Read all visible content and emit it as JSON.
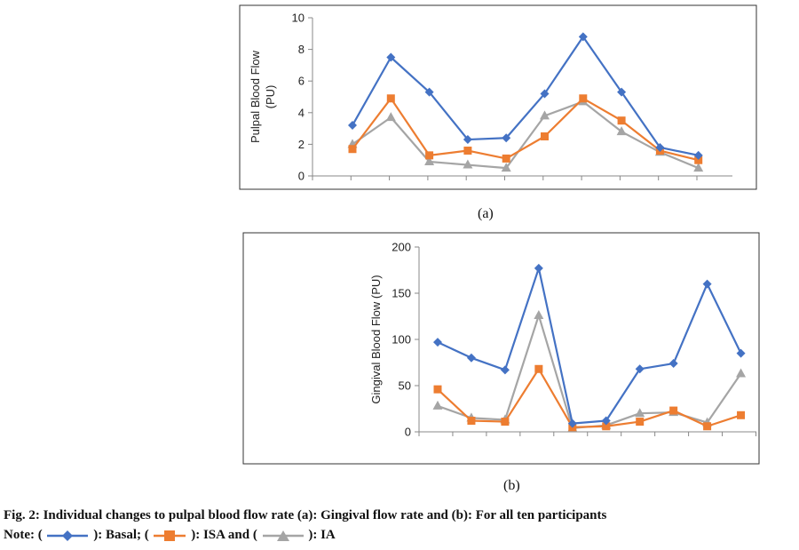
{
  "figure": {
    "caption_line1": "Fig. 2: Individual changes to pulpal blood flow rate (a): Gingival flow rate and (b): For all ten participants",
    "note_prefix": "Note: (",
    "note_basal": "): Basal; (",
    "note_isa": "): ISA and (",
    "note_ia": "): IA",
    "colors": {
      "basal": "#4472C4",
      "isa": "#ED7D31",
      "ia": "#A5A5A5"
    }
  },
  "chart_data": [
    {
      "type": "line",
      "panel_label": "(a)",
      "ylabel_line1": "Pulpal Blood Flow",
      "ylabel_line2": "(PU)",
      "ylim": [
        0,
        10
      ],
      "yticks": [
        0,
        2,
        4,
        6,
        8,
        10
      ],
      "x": [
        1,
        2,
        3,
        4,
        5,
        6,
        7,
        8,
        9,
        10
      ],
      "series": [
        {
          "name": "Basal",
          "marker": "diamond",
          "color": "#4472C4",
          "values": [
            3.2,
            7.5,
            5.3,
            2.3,
            2.4,
            5.2,
            8.8,
            5.3,
            1.8,
            1.3
          ]
        },
        {
          "name": "ISA",
          "marker": "square",
          "color": "#ED7D31",
          "values": [
            1.7,
            4.9,
            1.3,
            1.6,
            1.1,
            2.5,
            4.9,
            3.5,
            1.6,
            1.0
          ]
        },
        {
          "name": "IA",
          "marker": "triangle",
          "color": "#A5A5A5",
          "values": [
            2.0,
            3.7,
            0.9,
            0.7,
            0.5,
            3.8,
            4.7,
            2.8,
            1.5,
            0.5
          ]
        }
      ]
    },
    {
      "type": "line",
      "panel_label": "(b)",
      "ylabel_line1": "Gingival Blood Flow (PU)",
      "ylim": [
        0,
        200
      ],
      "yticks": [
        0,
        50,
        100,
        150,
        200
      ],
      "x": [
        1,
        2,
        3,
        4,
        5,
        6,
        7,
        8,
        9,
        10
      ],
      "series": [
        {
          "name": "Basal",
          "marker": "diamond",
          "color": "#4472C4",
          "values": [
            97,
            80,
            67,
            177,
            9,
            12,
            68,
            74,
            160,
            85
          ]
        },
        {
          "name": "ISA",
          "marker": "square",
          "color": "#ED7D31",
          "values": [
            46,
            12,
            11,
            68,
            5,
            6,
            11,
            23,
            6,
            18
          ]
        },
        {
          "name": "IA",
          "marker": "triangle",
          "color": "#A5A5A5",
          "values": [
            28,
            15,
            13,
            126,
            4,
            7,
            20,
            21,
            10,
            63
          ]
        }
      ]
    }
  ]
}
